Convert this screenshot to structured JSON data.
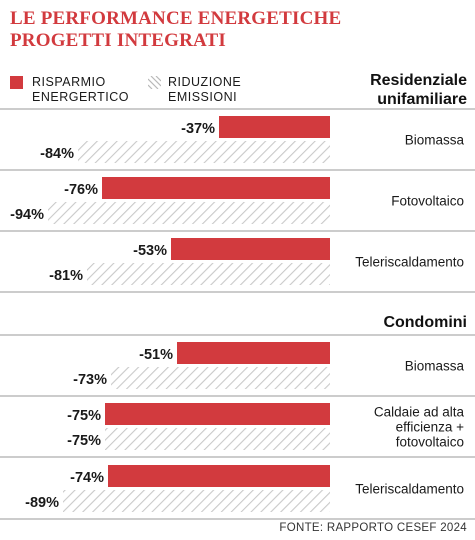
{
  "title": "LE PERFORMANCE ENERGETICHE\nPROGETTI INTEGRATI",
  "source": "FONTE: RAPPORTO CESEF 2024",
  "colors": {
    "accent": "#d23a3e",
    "text": "#1a1a1a",
    "divider": "#9a9a9a"
  },
  "chart_data": {
    "type": "bar",
    "orientation": "horizontal",
    "title": "LE PERFORMANCE ENERGETICHE PROGETTI INTEGRATI",
    "legend": {
      "placement": "top-left",
      "entries": [
        {
          "key": "risparmio",
          "label": "RISPARMIO\nENERGERTICO",
          "style": "solid",
          "color": "#d23a3e"
        },
        {
          "key": "riduzione",
          "label": "RIDUZIONE\nEMISSIONI",
          "style": "hatched",
          "color": "#e8a0a3"
        }
      ]
    },
    "xlim": [
      -100,
      0
    ],
    "grid": false,
    "groups": [
      {
        "name": "Residenziale\nunifamiliare",
        "categories": [
          {
            "name": "Biomassa",
            "risparmio": -37,
            "riduzione": -84
          },
          {
            "name": "Fotovoltaico",
            "risparmio": -76,
            "riduzione": -94
          },
          {
            "name": "Teleriscaldamento",
            "risparmio": -53,
            "riduzione": -81
          }
        ]
      },
      {
        "name": "Condomini",
        "categories": [
          {
            "name": "Biomassa",
            "risparmio": -51,
            "riduzione": -73
          },
          {
            "name": "Caldaie ad alta\nefficienza +\nfotovoltaico",
            "risparmio": -75,
            "riduzione": -75
          },
          {
            "name": "Teleriscaldamento",
            "risparmio": -74,
            "riduzione": -89
          }
        ]
      }
    ]
  }
}
